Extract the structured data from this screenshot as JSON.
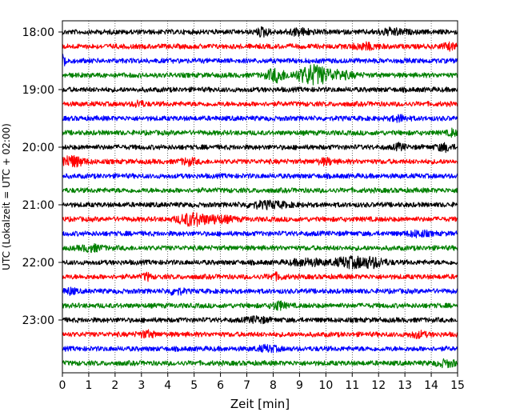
{
  "chart_data": {
    "type": "line",
    "title": "",
    "xlabel": "Zeit  [min]",
    "ylabel": "UTC (Lokalzeit = UTC + 02:00)",
    "xlim": [
      0,
      15
    ],
    "x_ticks": [
      "0",
      "1",
      "2",
      "3",
      "4",
      "5",
      "6",
      "7",
      "8",
      "9",
      "10",
      "11",
      "12",
      "13",
      "14",
      "15"
    ],
    "y_tick_labels": [
      "18:00",
      "19:00",
      "20:00",
      "21:00",
      "22:00",
      "23:00"
    ],
    "grid": "vertical dotted",
    "colors": [
      "#000000",
      "#ff0000",
      "#0000ff",
      "#008000"
    ],
    "traces": [
      {
        "start": "18:00",
        "color": "#000000",
        "events": [
          {
            "t": 7.6,
            "amp": 1.8,
            "w": 0.25
          },
          {
            "t": 9.0,
            "amp": 1.3,
            "w": 0.5
          },
          {
            "t": 12.5,
            "amp": 1.3,
            "w": 0.5
          }
        ]
      },
      {
        "start": "18:15",
        "color": "#ff0000",
        "events": [
          {
            "t": 11.5,
            "amp": 1.2,
            "w": 0.5
          },
          {
            "t": 14.7,
            "amp": 1.2,
            "w": 0.3
          }
        ]
      },
      {
        "start": "18:30",
        "color": "#0000ff",
        "events": [
          {
            "t": 0.05,
            "amp": 2.5,
            "w": 0.15
          }
        ]
      },
      {
        "start": "18:45",
        "color": "#008000",
        "events": [
          {
            "t": 8.1,
            "amp": 3.0,
            "w": 0.35
          },
          {
            "t": 9.5,
            "amp": 4.5,
            "w": 0.6
          },
          {
            "t": 10.5,
            "amp": 1.5,
            "w": 0.6
          }
        ]
      },
      {
        "start": "19:00",
        "color": "#000000",
        "events": []
      },
      {
        "start": "19:15",
        "color": "#ff0000",
        "events": [
          {
            "t": 2.9,
            "amp": 1.3,
            "w": 0.2
          }
        ]
      },
      {
        "start": "19:30",
        "color": "#0000ff",
        "events": [
          {
            "t": 12.8,
            "amp": 1.2,
            "w": 0.3
          }
        ]
      },
      {
        "start": "19:45",
        "color": "#008000",
        "events": [
          {
            "t": 14.8,
            "amp": 1.5,
            "w": 0.15
          }
        ]
      },
      {
        "start": "20:00",
        "color": "#000000",
        "events": [
          {
            "t": 12.8,
            "amp": 1.3,
            "w": 0.2
          },
          {
            "t": 14.5,
            "amp": 1.5,
            "w": 0.3
          }
        ]
      },
      {
        "start": "20:15",
        "color": "#ff0000",
        "events": [
          {
            "t": 0.3,
            "amp": 2.5,
            "w": 0.5
          },
          {
            "t": 4.8,
            "amp": 1.3,
            "w": 0.3
          },
          {
            "t": 10.0,
            "amp": 1.2,
            "w": 0.3
          }
        ]
      },
      {
        "start": "20:30",
        "color": "#0000ff",
        "events": []
      },
      {
        "start": "20:45",
        "color": "#008000",
        "events": []
      },
      {
        "start": "21:00",
        "color": "#000000",
        "events": [
          {
            "t": 7.8,
            "amp": 1.3,
            "w": 0.8
          }
        ]
      },
      {
        "start": "21:15",
        "color": "#ff0000",
        "events": [
          {
            "t": 4.9,
            "amp": 2.8,
            "w": 0.5
          },
          {
            "t": 5.9,
            "amp": 1.5,
            "w": 0.6
          }
        ]
      },
      {
        "start": "21:30",
        "color": "#0000ff",
        "events": [
          {
            "t": 13.5,
            "amp": 1.2,
            "w": 0.4
          }
        ]
      },
      {
        "start": "21:45",
        "color": "#008000",
        "events": [
          {
            "t": 1.1,
            "amp": 1.3,
            "w": 0.4
          }
        ]
      },
      {
        "start": "22:00",
        "color": "#000000",
        "events": [
          {
            "t": 9.3,
            "amp": 1.4,
            "w": 0.6
          },
          {
            "t": 10.9,
            "amp": 2.2,
            "w": 0.6
          },
          {
            "t": 11.8,
            "amp": 1.9,
            "w": 0.5
          }
        ]
      },
      {
        "start": "22:15",
        "color": "#ff0000",
        "events": [
          {
            "t": 3.2,
            "amp": 1.5,
            "w": 0.15
          },
          {
            "t": 8.1,
            "amp": 1.2,
            "w": 0.3
          }
        ]
      },
      {
        "start": "22:30",
        "color": "#0000ff",
        "events": [
          {
            "t": 0.3,
            "amp": 1.3,
            "w": 0.2
          },
          {
            "t": 4.3,
            "amp": 1.3,
            "w": 0.3
          }
        ]
      },
      {
        "start": "22:45",
        "color": "#008000",
        "events": [
          {
            "t": 8.2,
            "amp": 1.8,
            "w": 0.25
          }
        ]
      },
      {
        "start": "23:00",
        "color": "#000000",
        "events": [
          {
            "t": 7.4,
            "amp": 1.2,
            "w": 0.4
          }
        ]
      },
      {
        "start": "23:15",
        "color": "#ff0000",
        "events": [
          {
            "t": 3.2,
            "amp": 1.3,
            "w": 0.3
          },
          {
            "t": 13.5,
            "amp": 1.2,
            "w": 0.3
          }
        ]
      },
      {
        "start": "23:30",
        "color": "#0000ff",
        "events": [
          {
            "t": 7.8,
            "amp": 1.2,
            "w": 0.4
          }
        ]
      },
      {
        "start": "23:45",
        "color": "#008000",
        "events": [
          {
            "t": 14.6,
            "amp": 1.3,
            "w": 0.4
          }
        ]
      }
    ]
  }
}
